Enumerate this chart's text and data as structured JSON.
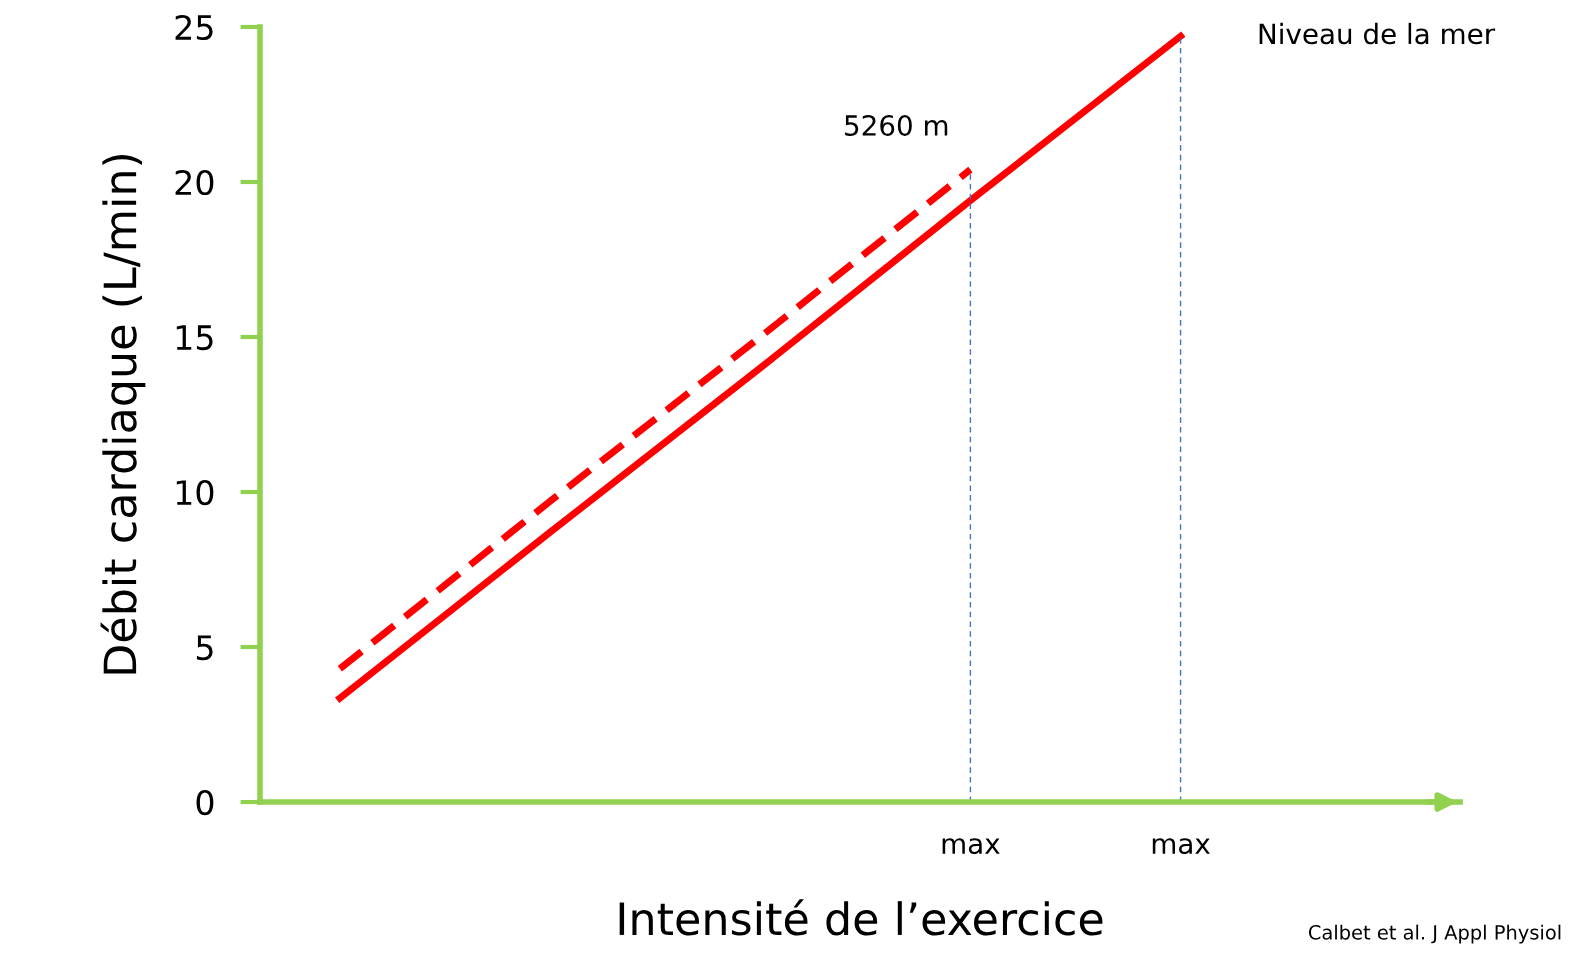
{
  "chart_data": {
    "type": "line",
    "xlabel": "Intensité de l’exercice",
    "ylabel": "Débit cardiaque (L/min)",
    "categories": [
      null,
      null,
      null,
      "max",
      "max"
    ],
    "ylim": [
      0,
      25
    ],
    "yticks": [
      0,
      5,
      10,
      15,
      20,
      25
    ],
    "series": [
      {
        "name": "Niveau de la mer",
        "color": "#ff0000",
        "values": [
          3.35,
          8.7,
          14.0,
          19.4,
          24.7
        ],
        "line_style": "solid"
      },
      {
        "name": "5260 m",
        "color": "#ff0000",
        "values": [
          4.3,
          9.7,
          15.0,
          20.4,
          null
        ],
        "line_style": "dashed"
      }
    ],
    "grid": "x",
    "legend": false,
    "annotations": [
      "Calbet et al. J Appl Physiol"
    ]
  }
}
